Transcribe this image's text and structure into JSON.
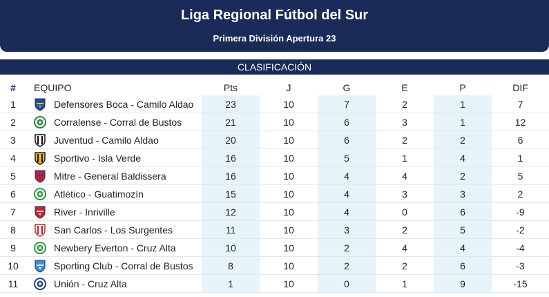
{
  "header": {
    "title": "Liga Regional Fútbol del Sur",
    "subtitle": "Primera División Apertura 23"
  },
  "section": {
    "label": "CLASIFICACIÓN"
  },
  "columns": [
    "#",
    "EQUIPO",
    "Pts",
    "J",
    "G",
    "E",
    "P",
    "DIF"
  ],
  "rows": [
    {
      "pos": "1",
      "team": "Defensores Boca - Camilo Aldao",
      "pts": "23",
      "j": "10",
      "g": "7",
      "e": "2",
      "p": "1",
      "dif": "7",
      "crest": {
        "icon": "boca-crest-icon",
        "primary": "#1d4fa0",
        "secondary": "#f5c400",
        "shape": "shield"
      }
    },
    {
      "pos": "2",
      "team": "Corralense - Corral de Bustos",
      "pts": "21",
      "j": "10",
      "g": "6",
      "e": "3",
      "p": "1",
      "dif": "12",
      "crest": {
        "icon": "corralense-crest-icon",
        "primary": "#1f8a3b",
        "secondary": "#ffffff",
        "shape": "round"
      }
    },
    {
      "pos": "3",
      "team": "Juventud - Camilo Aldao",
      "pts": "20",
      "j": "10",
      "g": "6",
      "e": "2",
      "p": "2",
      "dif": "6",
      "crest": {
        "icon": "juventud-crest-icon",
        "primary": "#111111",
        "secondary": "#ffffff",
        "shape": "stripes"
      }
    },
    {
      "pos": "4",
      "team": "Sportivo - Isla Verde",
      "pts": "16",
      "j": "10",
      "g": "5",
      "e": "1",
      "p": "4",
      "dif": "1",
      "crest": {
        "icon": "sportivo-crest-icon",
        "primary": "#1a1a1a",
        "secondary": "#f2c200",
        "shape": "stripes"
      }
    },
    {
      "pos": "5",
      "team": "Mitre - General Baldissera",
      "pts": "16",
      "j": "10",
      "g": "4",
      "e": "4",
      "p": "2",
      "dif": "5",
      "crest": {
        "icon": "mitre-crest-icon",
        "primary": "#c8202f",
        "secondary": "#2446a0",
        "shape": "shield"
      }
    },
    {
      "pos": "6",
      "team": "Atlético - Guatimozín",
      "pts": "15",
      "j": "10",
      "g": "4",
      "e": "3",
      "p": "3",
      "dif": "2",
      "crest": {
        "icon": "atletico-crest-icon",
        "primary": "#2e9a3a",
        "secondary": "#ffffff",
        "shape": "round"
      }
    },
    {
      "pos": "7",
      "team": "River - Inriville",
      "pts": "12",
      "j": "10",
      "g": "4",
      "e": "0",
      "p": "6",
      "dif": "-9",
      "crest": {
        "icon": "river-crest-icon",
        "primary": "#d0202a",
        "secondary": "#ffffff",
        "shape": "shield"
      }
    },
    {
      "pos": "8",
      "team": "San Carlos - Los Surgentes",
      "pts": "11",
      "j": "10",
      "g": "3",
      "e": "2",
      "p": "5",
      "dif": "-2",
      "crest": {
        "icon": "san-carlos-crest-icon",
        "primary": "#d0202a",
        "secondary": "#ffffff",
        "shape": "stripes"
      }
    },
    {
      "pos": "9",
      "team": "Newbery Everton - Cruz Alta",
      "pts": "10",
      "j": "10",
      "g": "2",
      "e": "4",
      "p": "4",
      "dif": "-4",
      "crest": {
        "icon": "newbery-crest-icon",
        "primary": "#2e9a3a",
        "secondary": "#ffffff",
        "shape": "round"
      }
    },
    {
      "pos": "10",
      "team": "Sporting Club - Corral de Bustos",
      "pts": "8",
      "j": "10",
      "g": "2",
      "e": "2",
      "p": "6",
      "dif": "-3",
      "crest": {
        "icon": "sporting-crest-icon",
        "primary": "#3a8fd8",
        "secondary": "#ffffff",
        "shape": "shield"
      }
    },
    {
      "pos": "11",
      "team": "Unión - Cruz Alta",
      "pts": "1",
      "j": "10",
      "g": "0",
      "e": "1",
      "p": "9",
      "dif": "-15",
      "crest": {
        "icon": "union-crest-icon",
        "primary": "#1d3f9a",
        "secondary": "#ffffff",
        "shape": "round"
      }
    }
  ]
}
